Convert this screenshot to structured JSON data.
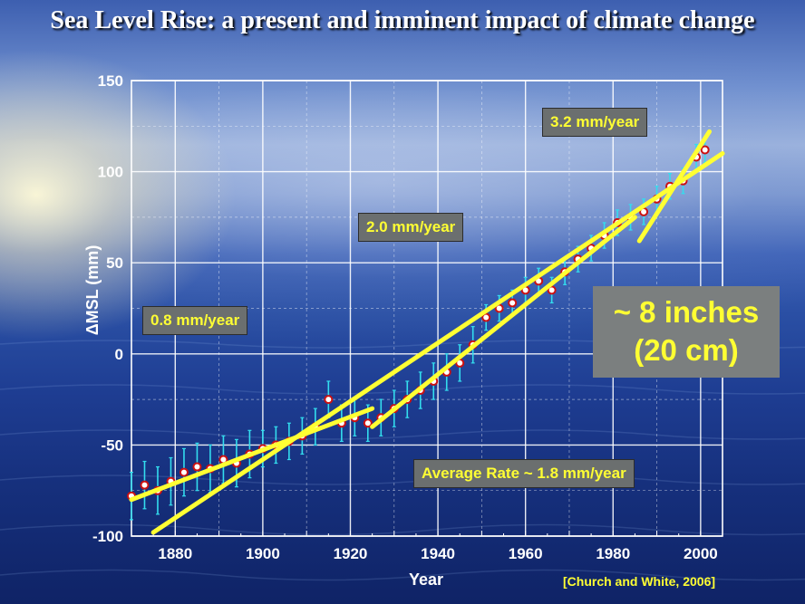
{
  "slide": {
    "title": "Sea Level Rise: a present and imminent impact of climate change",
    "citation": "[Church and White, 2006]",
    "colors": {
      "data_points": "#cc1111",
      "error_bars": "#33ddee",
      "trend_lines": "#ffff33",
      "annotation_text": "#ffff33"
    }
  },
  "annotations": {
    "rate_1": "0.8 mm/year",
    "rate_2": "2.0 mm/year",
    "rate_3": "3.2 mm/year",
    "average": "Average Rate ~ 1.8 mm/year",
    "total_inches": "~ 8 inches",
    "total_cm": "(20 cm)"
  },
  "chart_data": {
    "type": "scatter",
    "title": "Sea Level Rise: a present and imminent impact of climate change",
    "xlabel": "Year",
    "ylabel": "ΔMSL (mm)",
    "xlim": [
      1870,
      2005
    ],
    "ylim": [
      -100,
      150
    ],
    "x_ticks": [
      1880,
      1900,
      1920,
      1940,
      1960,
      1980,
      2000
    ],
    "y_ticks": [
      -100,
      -50,
      0,
      50,
      100,
      150
    ],
    "grid": true,
    "series": [
      {
        "x": [
          1870,
          1873,
          1876,
          1879,
          1882,
          1885,
          1888,
          1891,
          1894,
          1897,
          1900,
          1903,
          1906,
          1909,
          1912,
          1915,
          1918,
          1921,
          1924,
          1927,
          1930,
          1933,
          1936,
          1939,
          1942,
          1945,
          1948,
          1951,
          1954,
          1957,
          1960,
          1963,
          1966,
          1969,
          1972,
          1975,
          1978,
          1981,
          1984,
          1987,
          1990,
          1993,
          1996,
          1999,
          2001
        ],
        "y": [
          -78,
          -72,
          -75,
          -70,
          -65,
          -62,
          -63,
          -58,
          -60,
          -55,
          -52,
          -50,
          -48,
          -45,
          -40,
          -25,
          -38,
          -35,
          -38,
          -35,
          -30,
          -25,
          -20,
          -15,
          -10,
          -5,
          5,
          20,
          25,
          28,
          35,
          40,
          35,
          45,
          52,
          58,
          65,
          72,
          75,
          78,
          85,
          92,
          95,
          108,
          112
        ],
        "error_bars": true
      }
    ],
    "trend_lines": [
      {
        "label": "0.8 mm/year",
        "x": [
          1870,
          1925
        ],
        "y": [
          -80,
          -30
        ]
      },
      {
        "label": "2.0 mm/year",
        "x": [
          1925,
          1985
        ],
        "y": [
          -40,
          75
        ]
      },
      {
        "label": "3.2 mm/year",
        "x": [
          1986,
          2002
        ],
        "y": [
          62,
          122
        ]
      },
      {
        "label": "Average Rate ~ 1.8 mm/year",
        "x": [
          1875,
          2005
        ],
        "y": [
          -98,
          110
        ]
      }
    ]
  }
}
